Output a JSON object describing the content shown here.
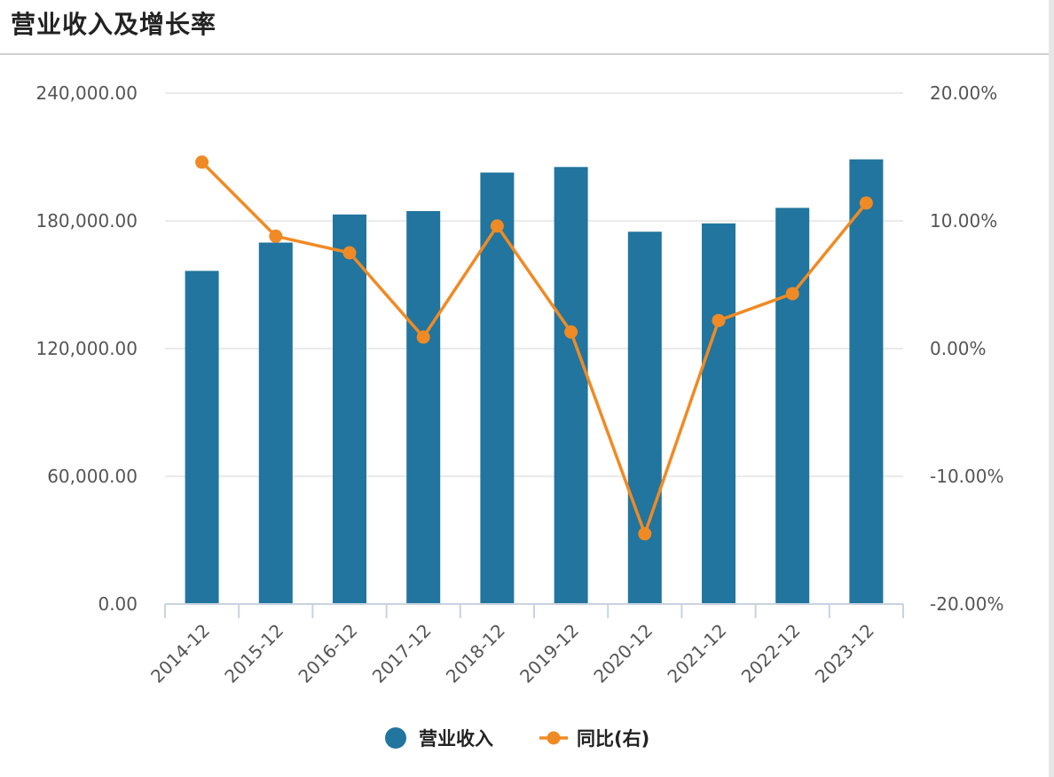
{
  "header": {
    "title": "营业收入及增长率"
  },
  "chart_data": {
    "type": "bar",
    "title": "营业收入及增长率",
    "categories": [
      "2014-12",
      "2015-12",
      "2016-12",
      "2017-12",
      "2018-12",
      "2019-12",
      "2020-12",
      "2021-12",
      "2022-12",
      "2023-12"
    ],
    "series": [
      {
        "name": "营业收入",
        "type": "bar",
        "axis": "left",
        "color": "#21759e",
        "values": [
          156500,
          169800,
          183000,
          184600,
          202700,
          205300,
          174900,
          178800,
          186100,
          208900
        ]
      },
      {
        "name": "同比(右)",
        "type": "line",
        "axis": "right",
        "color": "#f08a24",
        "values": [
          14.6,
          8.8,
          7.5,
          0.9,
          9.6,
          1.3,
          -14.5,
          2.2,
          4.3,
          11.4
        ]
      }
    ],
    "y_left": {
      "min": 0,
      "max": 240000,
      "ticks": [
        "0.00",
        "60,000.00",
        "120,000.00",
        "180,000.00",
        "240,000.00"
      ]
    },
    "y_right": {
      "min": -20,
      "max": 20,
      "ticks": [
        "-20.00%",
        "-10.00%",
        "0.00%",
        "10.00%",
        "20.00%"
      ]
    },
    "grid": true,
    "legend": "bottom-center"
  }
}
